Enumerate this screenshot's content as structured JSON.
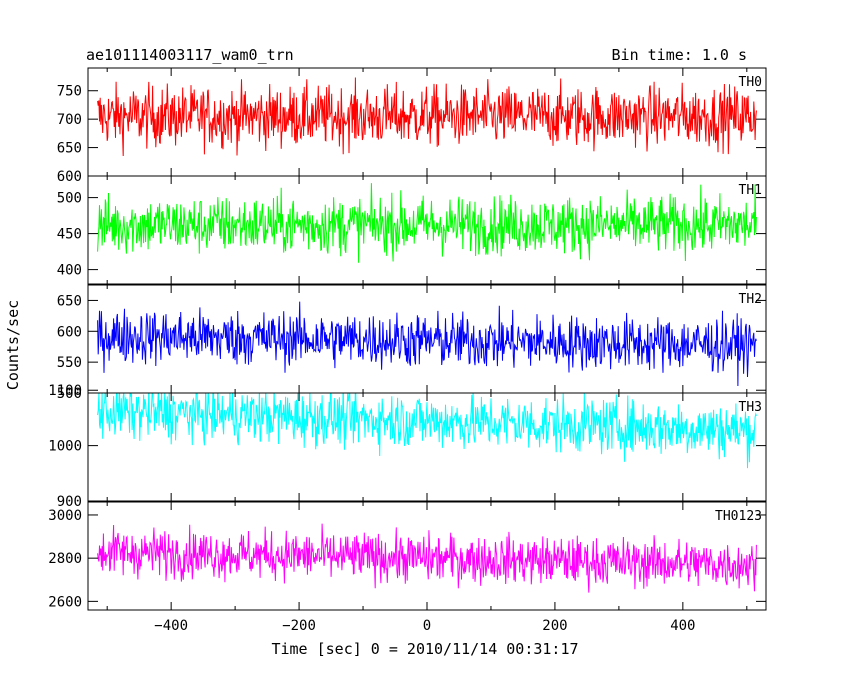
{
  "header": {
    "title": "ae101114003117_wam0_trn",
    "bin_time": "Bin time: 1.0 s"
  },
  "chart_data": {
    "type": "line",
    "xlabel": "Time [sec] 0 = 2010/11/14 00:31:17",
    "ylabel": "Counts/sec",
    "xlim": [
      -530,
      530
    ],
    "x_ticks": [
      -400,
      -200,
      0,
      200,
      400
    ],
    "x_range": [
      -515,
      515
    ],
    "x_step": 1,
    "grid": false,
    "panels": [
      {
        "name": "TH0",
        "color": "#ff0000",
        "ylim": [
          600,
          790
        ],
        "y_ticks": [
          600,
          650,
          700,
          750
        ],
        "mean": 705,
        "amplitude": 48,
        "trend": 0
      },
      {
        "name": "TH1",
        "color": "#00ff00",
        "ylim": [
          380,
          530
        ],
        "y_ticks": [
          400,
          450,
          500
        ],
        "mean": 462,
        "amplitude": 36,
        "trend": 0
      },
      {
        "name": "TH2",
        "color": "#0000ff",
        "ylim": [
          500,
          675
        ],
        "y_ticks": [
          500,
          550,
          600,
          650
        ],
        "mean": 585,
        "amplitude": 40,
        "trend": -15
      },
      {
        "name": "TH3",
        "color": "#00ffff",
        "ylim": [
          900,
          1095
        ],
        "y_ticks": [
          900,
          1000,
          1100
        ],
        "mean": 1045,
        "amplitude": 45,
        "trend": -35
      },
      {
        "name": "TH0123",
        "color": "#ff00ff",
        "ylim": [
          2560,
          3060
        ],
        "y_ticks": [
          2600,
          2800,
          3000
        ],
        "mean": 2800,
        "amplitude": 100,
        "trend": -60
      }
    ]
  }
}
